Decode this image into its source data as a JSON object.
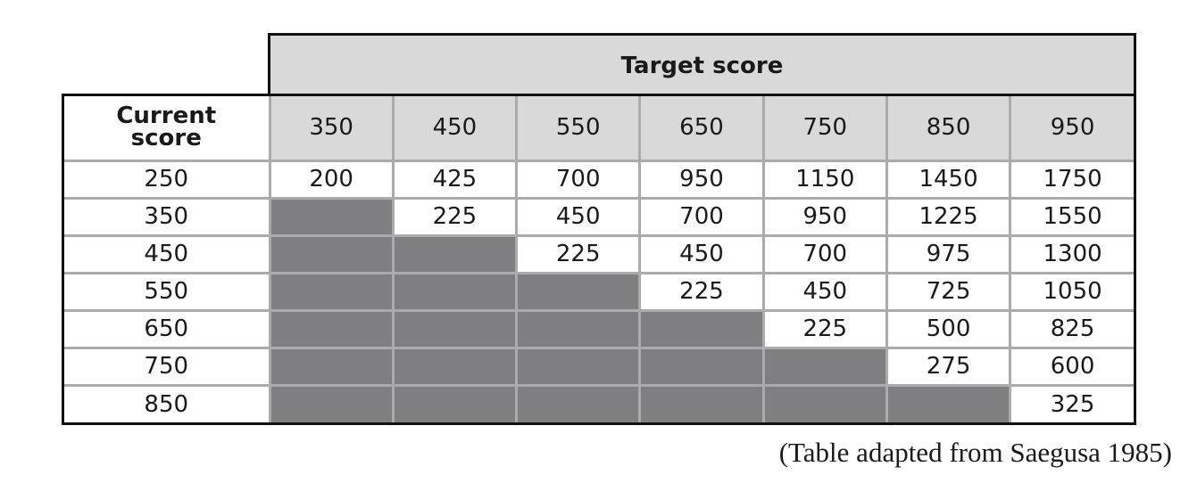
{
  "table": {
    "title": "Target score",
    "row_header": "Current score",
    "columns": [
      350,
      450,
      550,
      650,
      750,
      850,
      950
    ],
    "rows": [
      {
        "current": 250,
        "values": [
          200,
          425,
          700,
          950,
          1150,
          1450,
          1750
        ]
      },
      {
        "current": 350,
        "values": [
          null,
          225,
          450,
          700,
          950,
          1225,
          1550
        ]
      },
      {
        "current": 450,
        "values": [
          null,
          null,
          225,
          450,
          700,
          975,
          1300
        ]
      },
      {
        "current": 550,
        "values": [
          null,
          null,
          null,
          225,
          450,
          725,
          1050
        ]
      },
      {
        "current": 650,
        "values": [
          null,
          null,
          null,
          null,
          225,
          500,
          825
        ]
      },
      {
        "current": 750,
        "values": [
          null,
          null,
          null,
          null,
          null,
          275,
          600
        ]
      },
      {
        "current": 850,
        "values": [
          null,
          null,
          null,
          null,
          null,
          null,
          325
        ]
      }
    ]
  },
  "caption": "(Table adapted from Saegusa 1985)"
}
